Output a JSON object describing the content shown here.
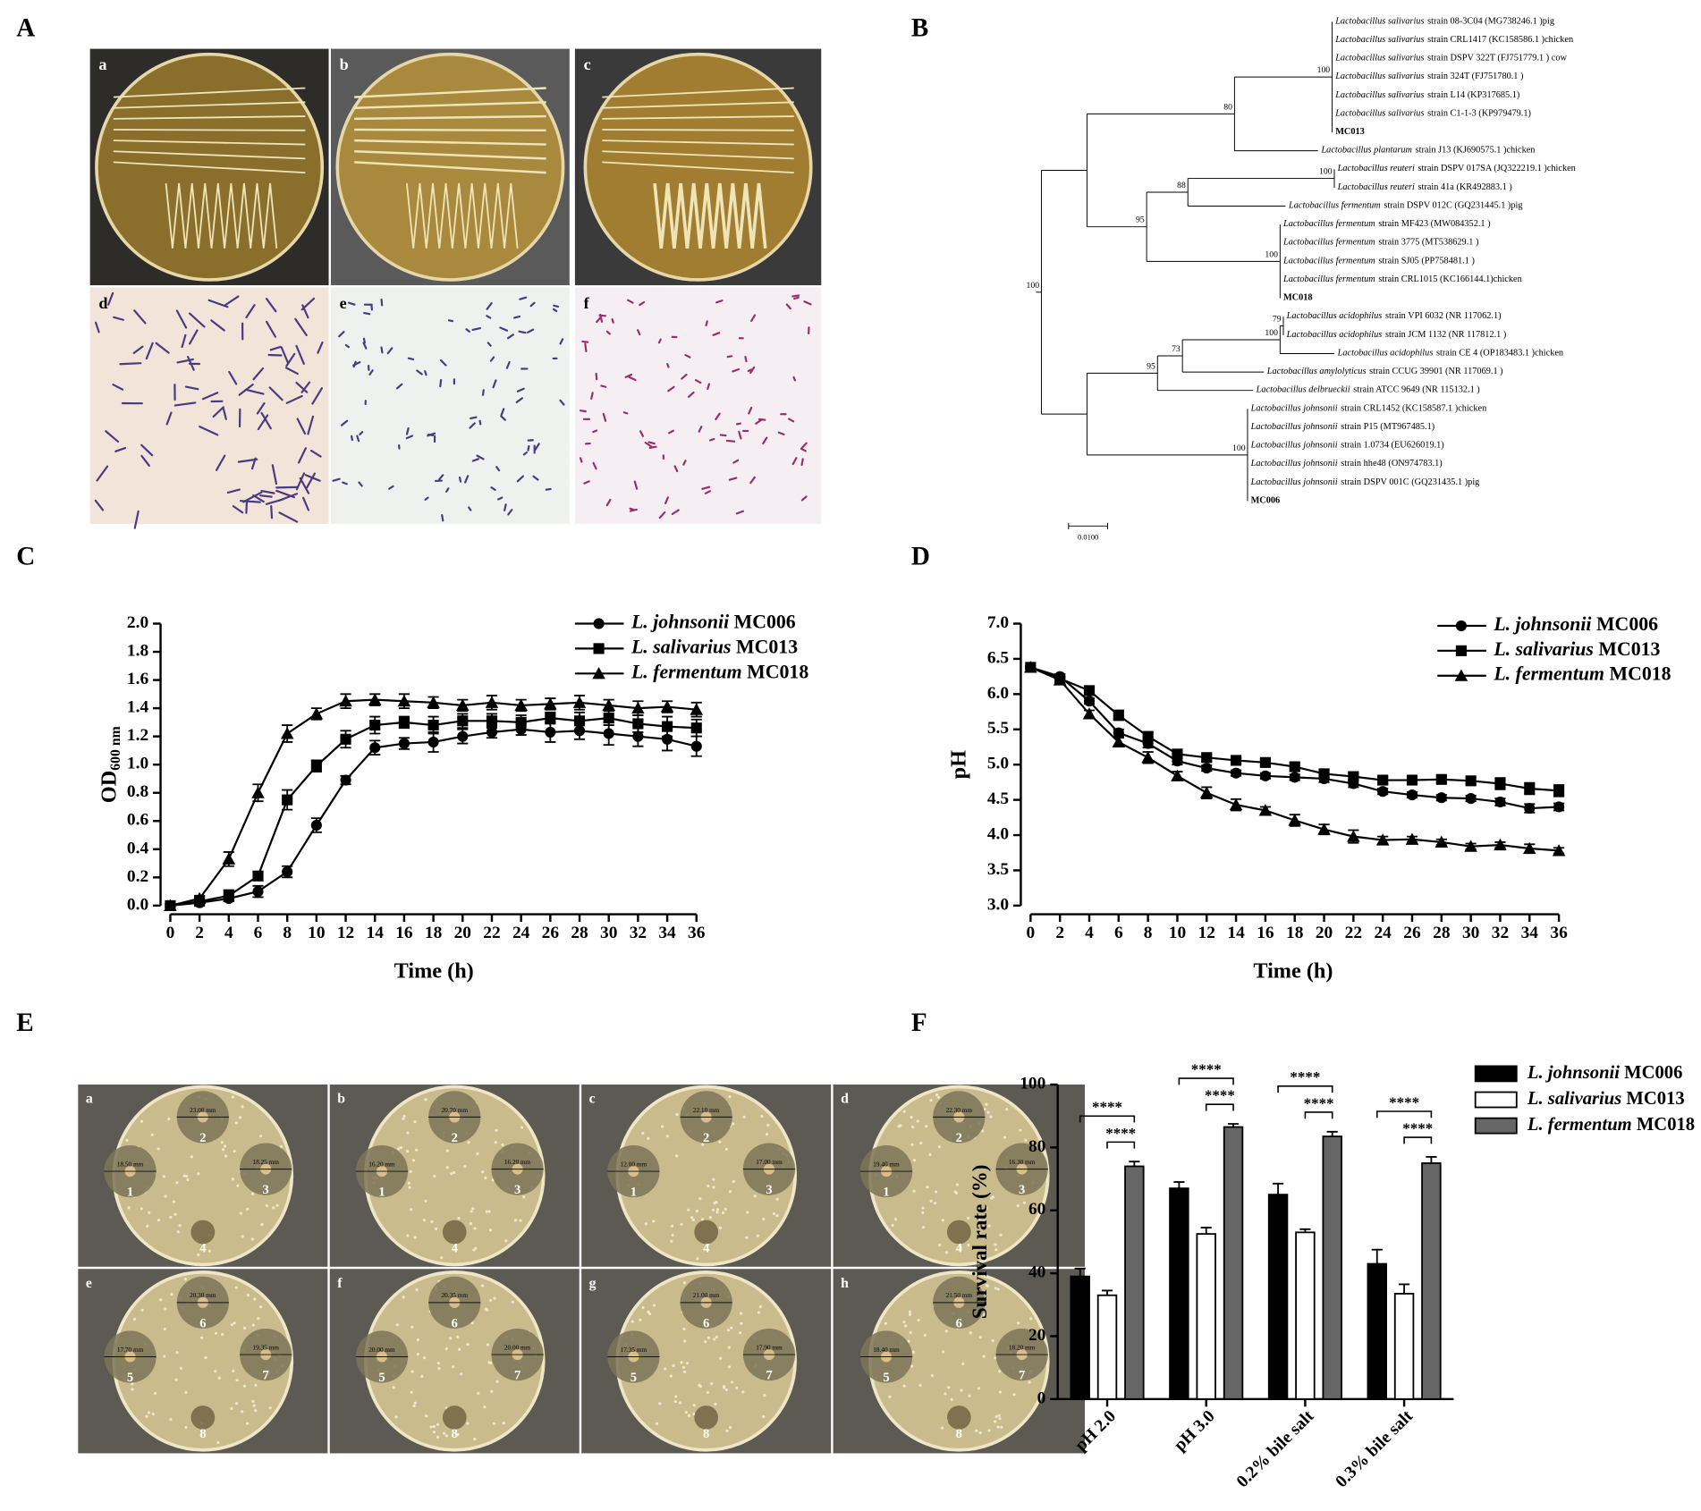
{
  "panel_labels": [
    "A",
    "B",
    "C",
    "D",
    "E",
    "F"
  ],
  "panel_a": {
    "labels": [
      "a",
      "b",
      "c",
      "d",
      "e",
      "f"
    ]
  },
  "panel_b": {
    "leaves": [
      {
        "species": "Lactobacillus salivarius",
        "rest": "strain 08-3C04 (MG738246.1 )pig"
      },
      {
        "species": "Lactobacillus salivarius",
        "rest": "strain CRL1417 (KC158586.1 )chicken"
      },
      {
        "species": "Lactobacillus salivarius",
        "rest": "strain DSPV 322T (FJ751779.1 ) cow"
      },
      {
        "species": "Lactobacillus salivarius",
        "rest": "strain 324T (FJ751780.1 )"
      },
      {
        "species": "Lactobacillus salivarius",
        "rest": "strain L14 (KP317685.1)"
      },
      {
        "species": "Lactobacillus salivarius",
        "rest": "strain C1-1-3 (KP979479.1)"
      },
      {
        "label": "MC013"
      },
      {
        "species": "Lactobacillus plantarum",
        "rest": "strain J13 (KJ690575.1 )chicken"
      },
      {
        "species": "Lactobacillus reuteri",
        "rest": "strain DSPV 017SA (JQ322219.1 )chicken"
      },
      {
        "species": "Lactobacillus reuteri",
        "rest": "strain 41a (KR492883.1 )"
      },
      {
        "species": "Lactobacillus fermentum",
        "rest": "strain DSPV 012C (GQ231445.1 )pig"
      },
      {
        "species": "Lactobacillus fermentum",
        "rest": "strain MF423 (MW084352.1 )"
      },
      {
        "species": "Lactobacillus fermentum",
        "rest": "strain 3775 (MT538629.1 )"
      },
      {
        "species": "Lactobacillus fermentum",
        "rest": "strain SJ05 (PP758481.1 )"
      },
      {
        "species": "Lactobacillus fermentum",
        "rest": "strain CRL1015 (KC166144.1)chicken"
      },
      {
        "label": "MC018"
      },
      {
        "species": "Lactobacillus acidophilus",
        "rest": "strain VPI 6032 (NR 117062.1)"
      },
      {
        "species": "Lactobacillus acidophilus",
        "rest": "strain JCM 1132 (NR 117812.1 )"
      },
      {
        "species": "Lactobacillus acidophilus",
        "rest": "strain CE 4 (OP183483.1 )chicken"
      },
      {
        "species": "Lactobacillus amylolyticus",
        "rest": "strain CCUG 39901 (NR 117069.1 )"
      },
      {
        "species": "Lactobacillus delbrueckii",
        "rest": "strain ATCC 9649 (NR 115132.1 )"
      },
      {
        "species": "Lactobacillus johnsonii",
        "rest": "strain CRL1452 (KC158587.1 )chicken"
      },
      {
        "species": "Lactobacillus johnsonii",
        "rest": "strain P15 (MT967485.1)"
      },
      {
        "species": "Lactobacillus johnsonii",
        "rest": "strain 1.0734 (EU626019.1)"
      },
      {
        "species": "Lactobacillus johnsonii",
        "rest": "strain hhe48 (ON974783.1)"
      },
      {
        "species": "Lactobacillus johnsonii",
        "rest": "strain DSPV 001C (GQ231435.1 )pig"
      },
      {
        "label": "MC006"
      }
    ],
    "bootstrap": [
      100,
      80,
      100,
      100,
      88,
      95,
      100,
      79,
      100,
      73,
      95,
      100
    ],
    "scale_label": "0.0100"
  },
  "panel_e": {
    "plates": [
      {
        "label": "a",
        "wells": [
          "1",
          "2",
          "3",
          "4"
        ],
        "measurements": [
          "18.50 mm",
          "23.00 mm",
          "18.25 mm"
        ]
      },
      {
        "label": "b",
        "wells": [
          "1",
          "2",
          "3",
          "4"
        ],
        "measurements": [
          "16.20 mm",
          "20.70 mm",
          "16.20 mm"
        ]
      },
      {
        "label": "c",
        "wells": [
          "1",
          "2",
          "3",
          "4"
        ],
        "measurements": [
          "12.00 mm",
          "22.10 mm",
          "17.00 mm"
        ]
      },
      {
        "label": "d",
        "wells": [
          "1",
          "2",
          "3",
          "4"
        ],
        "measurements": [
          "19.40 mm",
          "22.30 mm",
          "16.30 mm"
        ]
      },
      {
        "label": "e",
        "wells": [
          "5",
          "6",
          "7",
          "8"
        ],
        "measurements": [
          "17.70 mm",
          "20.30 mm",
          "19.35 mm"
        ]
      },
      {
        "label": "f",
        "wells": [
          "5",
          "6",
          "7",
          "8"
        ],
        "measurements": [
          "20.00 mm",
          "20.35 mm",
          "20.00 mm"
        ]
      },
      {
        "label": "g",
        "wells": [
          "5",
          "6",
          "7",
          "8"
        ],
        "measurements": [
          "17.35 mm",
          "21.00 mm",
          "17.90 mm"
        ]
      },
      {
        "label": "h",
        "wells": [
          "5",
          "6",
          "7",
          "8"
        ],
        "measurements": [
          "18.40 mm",
          "21.50 mm",
          "18.20 mm"
        ]
      }
    ]
  },
  "chart_data": [
    {
      "type": "line",
      "x_label": "Time (h)",
      "y_label": "OD",
      "y_label_sub": "600 nm",
      "legend": "upper right",
      "x": [
        0,
        2,
        4,
        6,
        8,
        10,
        12,
        14,
        16,
        18,
        20,
        22,
        24,
        26,
        28,
        30,
        32,
        34,
        36
      ],
      "xlim": [
        0,
        36
      ],
      "xticks": [
        0,
        2,
        4,
        6,
        8,
        10,
        12,
        14,
        16,
        18,
        20,
        22,
        24,
        26,
        28,
        30,
        32,
        34,
        36
      ],
      "ylim": [
        0,
        2
      ],
      "yticks": [
        {
          "value": 0,
          "label": "0.0"
        },
        0.2,
        0.4,
        0.6,
        0.8,
        {
          "value": 1,
          "label": "1.0"
        },
        1.2,
        1.4,
        1.6,
        1.8,
        {
          "value": 2,
          "label": "2.0"
        }
      ],
      "series": [
        {
          "name": "L. johnsonii MC006",
          "color": "#000000",
          "marker": "circle",
          "values": [
            0,
            0.02,
            0.05,
            0.1,
            0.24,
            0.57,
            0.89,
            1.12,
            1.15,
            1.16,
            1.2,
            1.23,
            1.25,
            1.23,
            1.24,
            1.22,
            1.2,
            1.18,
            1.13
          ],
          "errors": [
            0.01,
            0.01,
            0.02,
            0.04,
            0.04,
            0.05,
            0.03,
            0.05,
            0.04,
            0.07,
            0.05,
            0.04,
            0.04,
            0.07,
            0.06,
            0.08,
            0.07,
            0.08,
            0.07
          ]
        },
        {
          "name": "L. salivarius MC013",
          "color": "#000000",
          "marker": "square",
          "values": [
            0,
            0.03,
            0.07,
            0.21,
            0.75,
            0.99,
            1.18,
            1.28,
            1.3,
            1.28,
            1.31,
            1.31,
            1.3,
            1.33,
            1.31,
            1.33,
            1.29,
            1.27,
            1.26
          ],
          "errors": [
            0.01,
            0.01,
            0.04,
            0.03,
            0.07,
            0.04,
            0.06,
            0.06,
            0.04,
            0.06,
            0.05,
            0.05,
            0.05,
            0.04,
            0.06,
            0.05,
            0.06,
            0.07,
            0.06
          ]
        },
        {
          "name": "L. fermentum MC018",
          "color": "#000000",
          "marker": "triangle",
          "values": [
            0,
            0.05,
            0.33,
            0.8,
            1.22,
            1.36,
            1.45,
            1.46,
            1.45,
            1.44,
            1.42,
            1.44,
            1.42,
            1.43,
            1.44,
            1.42,
            1.4,
            1.41,
            1.39
          ],
          "errors": [
            0.01,
            0.02,
            0.05,
            0.06,
            0.06,
            0.04,
            0.05,
            0.04,
            0.05,
            0.04,
            0.04,
            0.05,
            0.04,
            0.04,
            0.05,
            0.04,
            0.05,
            0.04,
            0.05
          ]
        }
      ]
    },
    {
      "type": "line",
      "x_label": "Time (h)",
      "y_label": "pH",
      "legend": "upper right",
      "x": [
        0,
        2,
        4,
        6,
        8,
        10,
        12,
        14,
        16,
        18,
        20,
        22,
        24,
        26,
        28,
        30,
        32,
        34,
        36
      ],
      "xlim": [
        0,
        36
      ],
      "xticks": [
        0,
        2,
        4,
        6,
        8,
        10,
        12,
        14,
        16,
        18,
        20,
        22,
        24,
        26,
        28,
        30,
        32,
        34,
        36
      ],
      "ylim": [
        3,
        7
      ],
      "yticks": [
        {
          "value": 3,
          "label": "3.0"
        },
        3.5,
        {
          "value": 4,
          "label": "4.0"
        },
        4.5,
        {
          "value": 5,
          "label": "5.0"
        },
        5.5,
        {
          "value": 6,
          "label": "6.0"
        },
        6.5,
        {
          "value": 7,
          "label": "7.0"
        }
      ],
      "series": [
        {
          "name": "L. johnsonii MC006",
          "color": "#000000",
          "marker": "circle",
          "values": [
            6.38,
            6.25,
            5.9,
            5.45,
            5.3,
            5.05,
            4.95,
            4.88,
            4.84,
            4.82,
            4.8,
            4.73,
            4.62,
            4.57,
            4.53,
            4.52,
            4.47,
            4.38,
            4.4
          ],
          "errors": [
            0.02,
            0.03,
            0.04,
            0.05,
            0.06,
            0.05,
            0.04,
            0.04,
            0.04,
            0.04,
            0.05,
            0.05,
            0.04,
            0.04,
            0.04,
            0.04,
            0.05,
            0.06,
            0.05
          ]
        },
        {
          "name": "L. salivarius MC013",
          "color": "#000000",
          "marker": "square",
          "values": [
            6.38,
            6.22,
            6.05,
            5.7,
            5.4,
            5.15,
            5.1,
            5.06,
            5.03,
            4.97,
            4.87,
            4.83,
            4.78,
            4.78,
            4.79,
            4.77,
            4.73,
            4.66,
            4.63
          ],
          "errors": [
            0.02,
            0.03,
            0.04,
            0.07,
            0.06,
            0.05,
            0.05,
            0.04,
            0.04,
            0.05,
            0.06,
            0.05,
            0.05,
            0.05,
            0.04,
            0.05,
            0.08,
            0.08,
            0.08
          ]
        },
        {
          "name": "L. fermentum MC018",
          "color": "#000000",
          "marker": "triangle",
          "values": [
            6.38,
            6.2,
            5.72,
            5.32,
            5.1,
            4.84,
            4.6,
            4.43,
            4.35,
            4.21,
            4.08,
            3.98,
            3.93,
            3.94,
            3.9,
            3.84,
            3.86,
            3.81,
            3.78
          ],
          "errors": [
            0.02,
            0.03,
            0.05,
            0.06,
            0.08,
            0.06,
            0.08,
            0.08,
            0.05,
            0.08,
            0.07,
            0.09,
            0.05,
            0.04,
            0.04,
            0.04,
            0.04,
            0.06,
            0.04
          ]
        }
      ]
    },
    {
      "type": "bar",
      "y_label": "Survival rate (%)",
      "legend": "upper right",
      "categories": [
        "pH 2.0",
        "pH 3.0",
        "0.2% bile salt",
        "0.3% bile salt"
      ],
      "ylim": [
        0,
        100
      ],
      "yticks": [
        0,
        20,
        40,
        60,
        80,
        100
      ],
      "series": [
        {
          "name": "L. johnsonii MC006",
          "color": "#000000",
          "values": [
            39,
            67,
            65,
            43
          ],
          "errors": [
            2.5,
            2,
            3.5,
            4.5
          ]
        },
        {
          "name": "L. salivarius MC013",
          "color": "#ffffff",
          "values": [
            33,
            52.5,
            53,
            33.5
          ],
          "errors": [
            1.5,
            2,
            1,
            3
          ]
        },
        {
          "name": "L. fermentum MC018",
          "color": "#666666",
          "values": [
            74,
            86.5,
            83.5,
            75
          ],
          "errors": [
            1.5,
            1,
            1.5,
            2
          ]
        }
      ],
      "significance": [
        "****",
        "****",
        "****",
        "****",
        "****",
        "****",
        "****",
        "****"
      ]
    }
  ]
}
